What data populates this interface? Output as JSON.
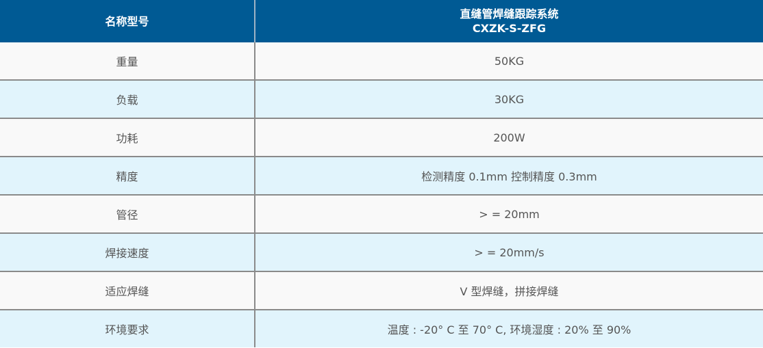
{
  "header": {
    "col1": "名称型号",
    "col2_line1": "直缝管焊缝跟踪系统",
    "col2_line2": "CXZK-S-ZFG"
  },
  "colors": {
    "header_bg": "#005a94",
    "row_odd": "#f9f9f9",
    "row_even": "#e1f4fc"
  },
  "rows": [
    {
      "label": "重量",
      "value": "50KG"
    },
    {
      "label": "负载",
      "value": "30KG"
    },
    {
      "label": "功耗",
      "value": "200W"
    },
    {
      "label": "精度",
      "value": "检测精度 0.1mm 控制精度 0.3mm"
    },
    {
      "label": "管径",
      "value": "> = 20mm"
    },
    {
      "label": "焊接速度",
      "value": "> = 20mm/s"
    },
    {
      "label": "适应焊缝",
      "value": "V 型焊缝，拼接焊缝"
    },
    {
      "label": "环境要求",
      "value": "温度 : -20° C 至 70° C, 环境湿度 : 20% 至 90%"
    }
  ]
}
